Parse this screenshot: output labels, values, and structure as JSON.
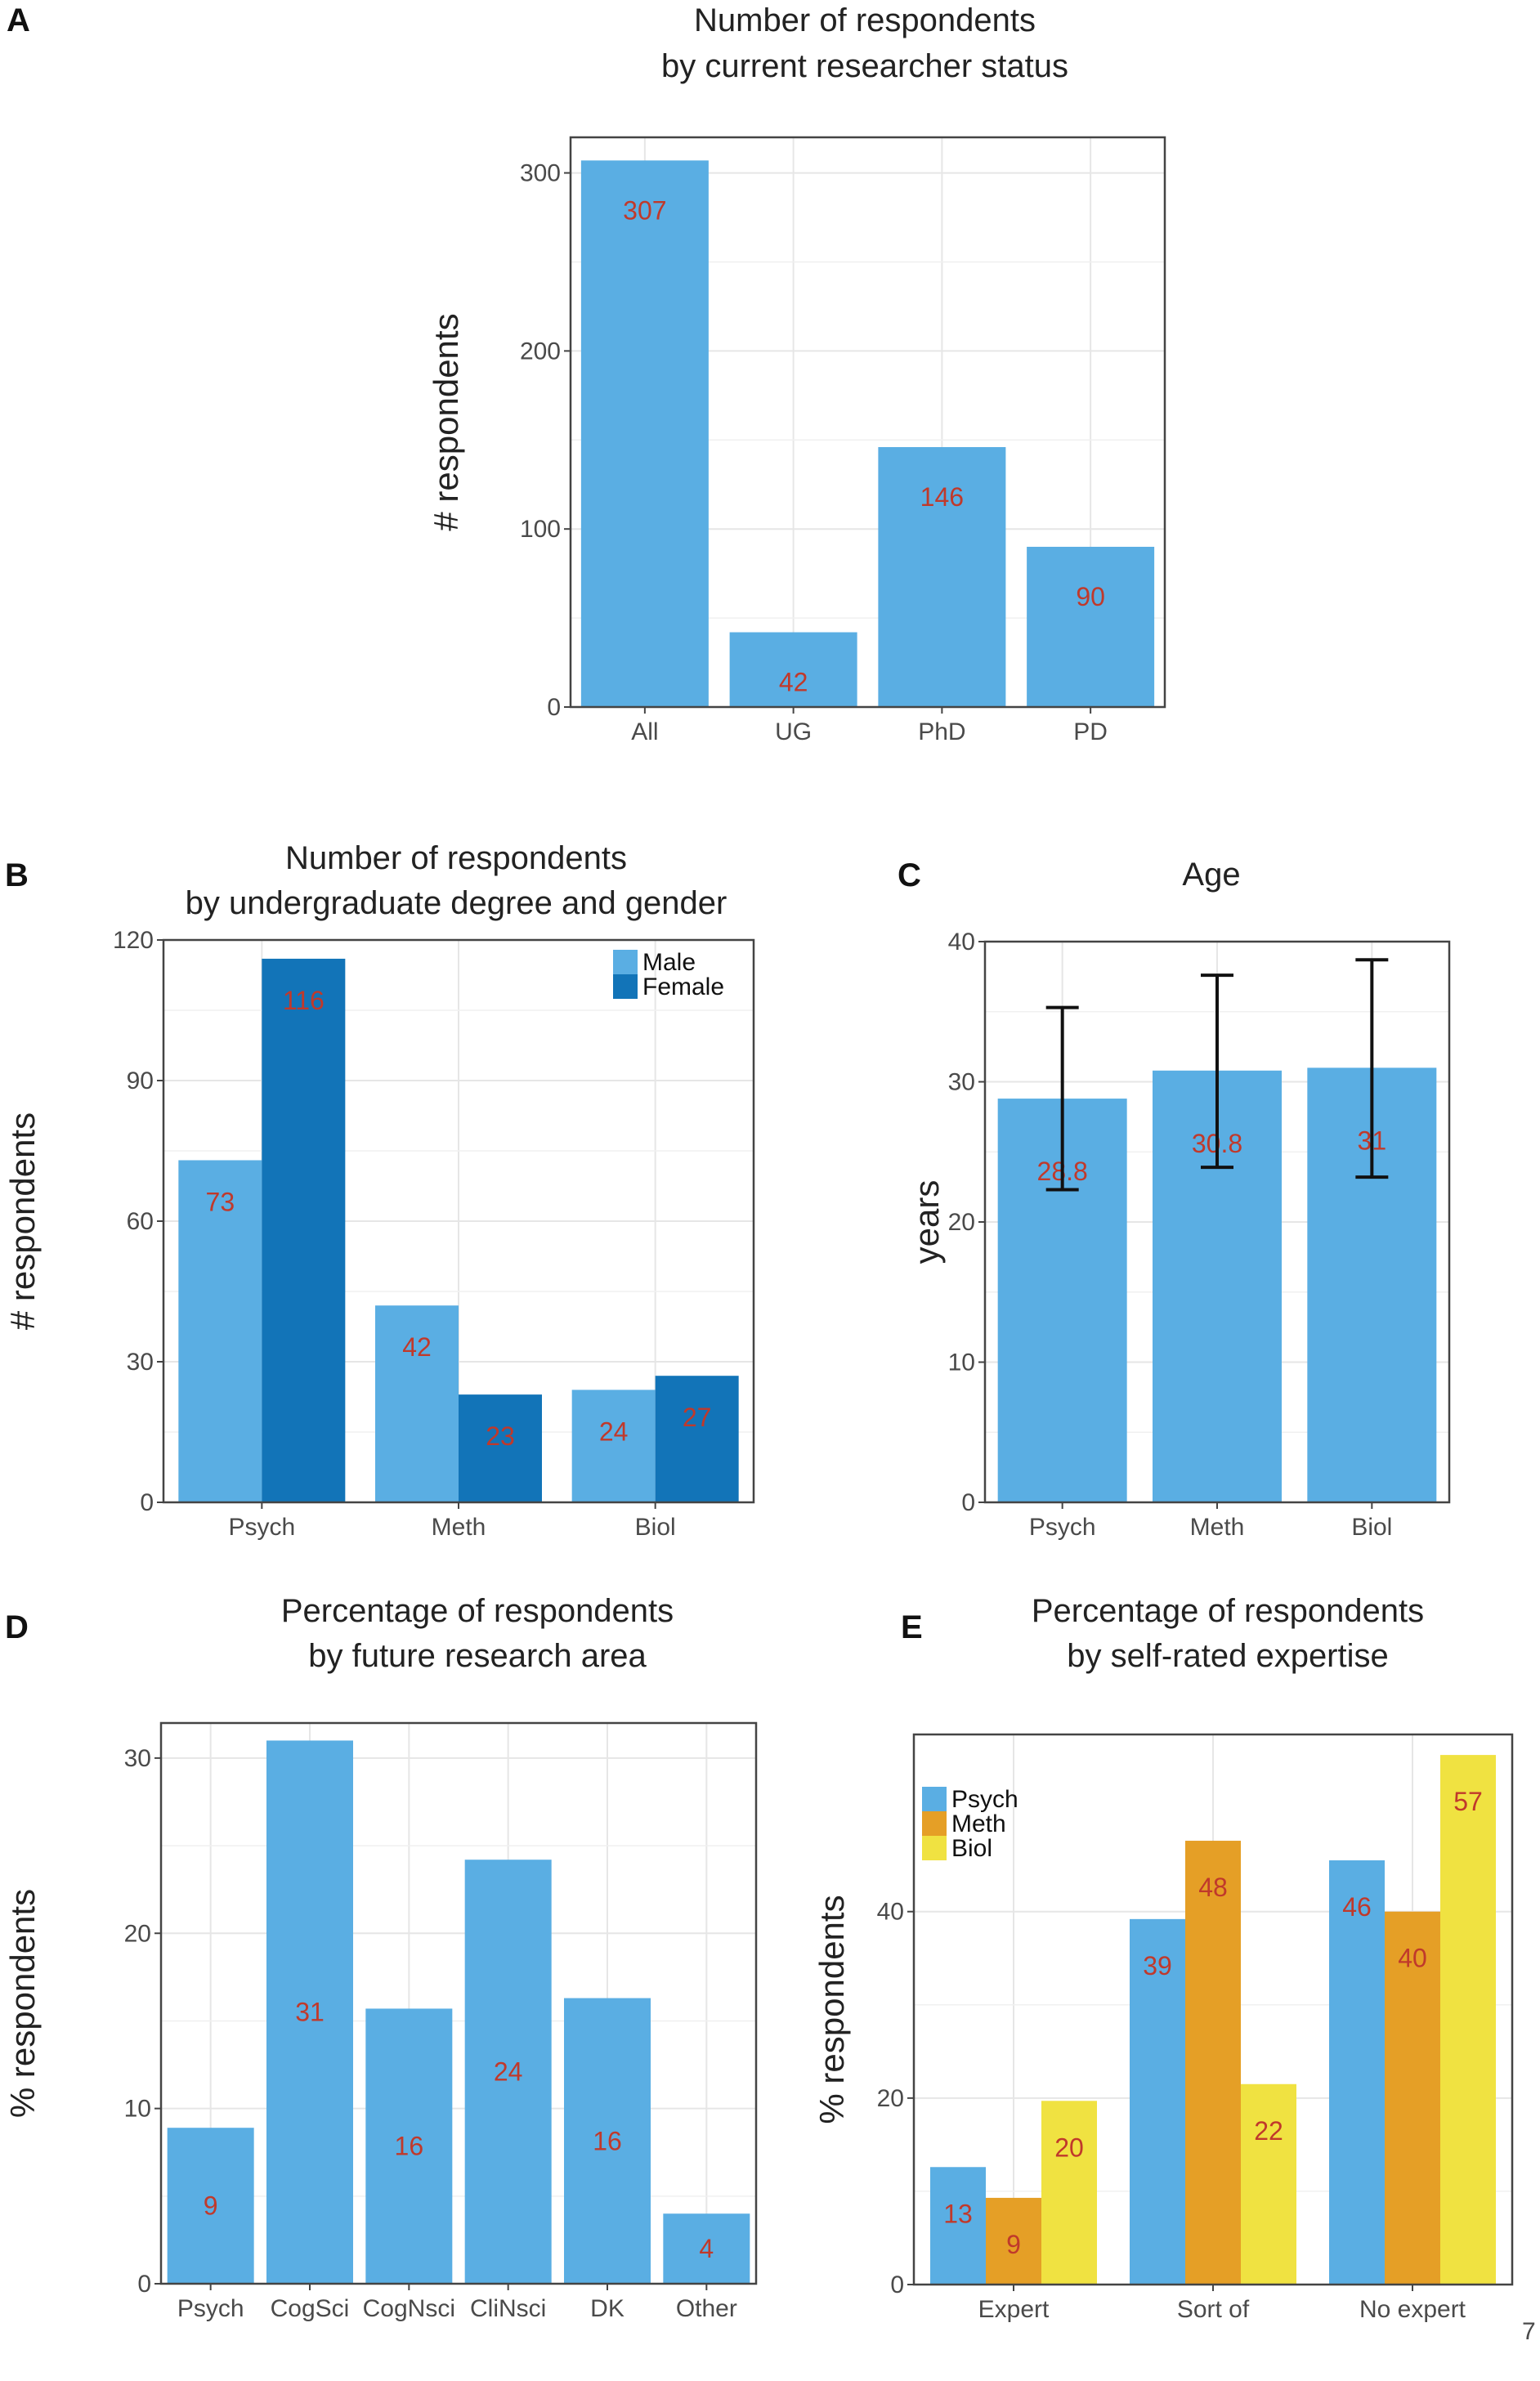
{
  "figure_number": "7",
  "chart_data": [
    {
      "panel": "A",
      "type": "bar",
      "title": "Number of respondents",
      "subtitle": "by current researcher status",
      "ylabel": "# respondents",
      "xlabel": "",
      "categories": [
        "All",
        "UG",
        "PhD",
        "PD"
      ],
      "values": [
        307,
        42,
        146,
        90
      ],
      "data_labels": [
        "307",
        "42",
        "146",
        "90"
      ],
      "ylim": [
        0,
        320
      ],
      "yticks": [
        0,
        100,
        200,
        300
      ],
      "bar_color": "#5aaee3",
      "label_color": "#c0392b",
      "grid": true
    },
    {
      "panel": "B",
      "type": "bar",
      "title": "Number of respondents",
      "subtitle": "by undergraduate degree and gender",
      "ylabel": "# respondents",
      "xlabel": "",
      "categories": [
        "Psych",
        "Meth",
        "Biol"
      ],
      "series": [
        {
          "name": "Male",
          "values": [
            73,
            42,
            24
          ],
          "data_labels": [
            "73",
            "42",
            "24"
          ],
          "color": "#5aaee3"
        },
        {
          "name": "Female",
          "values": [
            116,
            23,
            27
          ],
          "data_labels": [
            "116",
            "23",
            "27"
          ],
          "color": "#1274b8"
        }
      ],
      "ylim": [
        0,
        120
      ],
      "yticks": [
        0,
        30,
        60,
        90,
        120
      ],
      "legend_position": "top-right",
      "label_color": "#c0392b",
      "grid": true
    },
    {
      "panel": "C",
      "type": "bar",
      "title": "Age",
      "ylabel": "years",
      "xlabel": "",
      "categories": [
        "Psych",
        "Meth",
        "Biol"
      ],
      "values": [
        28.8,
        30.8,
        31
      ],
      "data_labels": [
        "28.8",
        "30.8",
        "31"
      ],
      "error_low": [
        22.3,
        23.9,
        23.2
      ],
      "error_high": [
        35.3,
        37.6,
        38.7
      ],
      "ylim": [
        0,
        40
      ],
      "yticks": [
        0,
        10,
        20,
        30,
        40
      ],
      "bar_color": "#5aaee3",
      "label_color": "#c0392b",
      "grid": true
    },
    {
      "panel": "D",
      "type": "bar",
      "title": "Percentage of respondents",
      "subtitle": "by future research area",
      "ylabel": "% respondents",
      "xlabel": "",
      "categories": [
        "Psych",
        "CogSci",
        "CogNsci",
        "CliNsci",
        "DK",
        "Other"
      ],
      "values": [
        8.9,
        31,
        15.7,
        24.2,
        16.3,
        4
      ],
      "data_labels": [
        "9",
        "31",
        "16",
        "24",
        "16",
        "4"
      ],
      "ylim": [
        0,
        32
      ],
      "yticks": [
        0,
        10,
        20,
        30
      ],
      "bar_color": "#5aaee3",
      "label_color": "#c0392b",
      "grid": true
    },
    {
      "panel": "E",
      "type": "bar",
      "title": "Percentage of respondents",
      "subtitle": "by self-rated expertise",
      "ylabel": "% respondents",
      "xlabel": "",
      "categories": [
        "Expert",
        "Sort of",
        "No expert"
      ],
      "series": [
        {
          "name": "Psych",
          "values": [
            12.6,
            39.2,
            45.5
          ],
          "data_labels": [
            "13",
            "39",
            "46"
          ],
          "color": "#5aaee3"
        },
        {
          "name": "Meth",
          "values": [
            9.3,
            47.6,
            40
          ],
          "data_labels": [
            "9",
            "48",
            "40"
          ],
          "color": "#e59f26"
        },
        {
          "name": "Biol",
          "values": [
            19.7,
            21.5,
            56.8
          ],
          "data_labels": [
            "20",
            "22",
            "57"
          ],
          "color": "#f0e241"
        }
      ],
      "ylim": [
        0,
        59
      ],
      "yticks": [
        0,
        20,
        40
      ],
      "legend_position": "top-left",
      "label_color": "#c0392b",
      "grid": true
    }
  ]
}
